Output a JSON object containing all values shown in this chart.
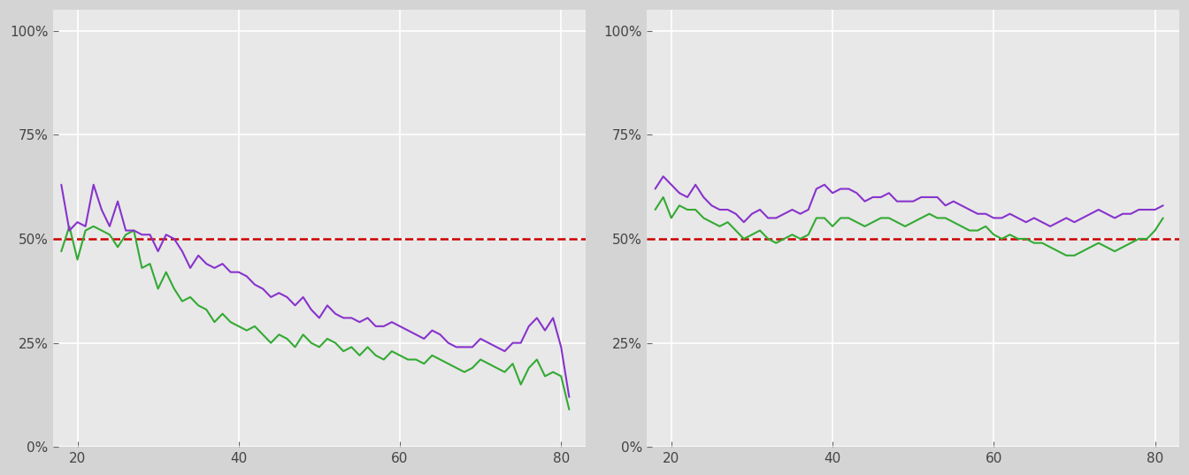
{
  "background_color": "#e8e8e8",
  "fig_background": "#d4d4d4",
  "ref_line": 0.5,
  "ref_line_color": "#cc0000",
  "xlim": [
    17,
    83
  ],
  "ylim": [
    0.0,
    1.05
  ],
  "yticks": [
    0.0,
    0.25,
    0.5,
    0.75,
    1.0
  ],
  "xticks": [
    20,
    40,
    60,
    80
  ],
  "male_color": "#33aa33",
  "female_color": "#8833cc",
  "line_width": 1.5,
  "left_female": [
    0.63,
    0.52,
    0.54,
    0.53,
    0.63,
    0.57,
    0.53,
    0.59,
    0.52,
    0.52,
    0.51,
    0.51,
    0.47,
    0.51,
    0.5,
    0.47,
    0.43,
    0.46,
    0.44,
    0.43,
    0.44,
    0.42,
    0.42,
    0.41,
    0.39,
    0.38,
    0.36,
    0.37,
    0.36,
    0.34,
    0.36,
    0.33,
    0.31,
    0.34,
    0.32,
    0.31,
    0.31,
    0.3,
    0.31,
    0.29,
    0.29,
    0.3,
    0.29,
    0.28,
    0.27,
    0.26,
    0.28,
    0.27,
    0.25,
    0.24,
    0.24,
    0.24,
    0.26,
    0.25,
    0.24,
    0.23,
    0.25,
    0.25,
    0.29,
    0.31,
    0.28,
    0.31,
    0.24,
    0.12
  ],
  "left_male": [
    0.47,
    0.53,
    0.45,
    0.52,
    0.53,
    0.52,
    0.51,
    0.48,
    0.51,
    0.52,
    0.43,
    0.44,
    0.38,
    0.42,
    0.38,
    0.35,
    0.36,
    0.34,
    0.33,
    0.3,
    0.32,
    0.3,
    0.29,
    0.28,
    0.29,
    0.27,
    0.25,
    0.27,
    0.26,
    0.24,
    0.27,
    0.25,
    0.24,
    0.26,
    0.25,
    0.23,
    0.24,
    0.22,
    0.24,
    0.22,
    0.21,
    0.23,
    0.22,
    0.21,
    0.21,
    0.2,
    0.22,
    0.21,
    0.2,
    0.19,
    0.18,
    0.19,
    0.21,
    0.2,
    0.19,
    0.18,
    0.2,
    0.15,
    0.19,
    0.21,
    0.17,
    0.18,
    0.17,
    0.09
  ],
  "right_female": [
    0.62,
    0.65,
    0.63,
    0.61,
    0.6,
    0.63,
    0.6,
    0.58,
    0.57,
    0.57,
    0.56,
    0.54,
    0.56,
    0.57,
    0.55,
    0.55,
    0.56,
    0.57,
    0.56,
    0.57,
    0.62,
    0.63,
    0.61,
    0.62,
    0.62,
    0.61,
    0.59,
    0.6,
    0.6,
    0.61,
    0.59,
    0.59,
    0.59,
    0.6,
    0.6,
    0.6,
    0.58,
    0.59,
    0.58,
    0.57,
    0.56,
    0.56,
    0.55,
    0.55,
    0.56,
    0.55,
    0.54,
    0.55,
    0.54,
    0.53,
    0.54,
    0.55,
    0.54,
    0.55,
    0.56,
    0.57,
    0.56,
    0.55,
    0.56,
    0.56,
    0.57,
    0.57,
    0.57,
    0.58
  ],
  "right_male": [
    0.57,
    0.6,
    0.55,
    0.58,
    0.57,
    0.57,
    0.55,
    0.54,
    0.53,
    0.54,
    0.52,
    0.5,
    0.51,
    0.52,
    0.5,
    0.49,
    0.5,
    0.51,
    0.5,
    0.51,
    0.55,
    0.55,
    0.53,
    0.55,
    0.55,
    0.54,
    0.53,
    0.54,
    0.55,
    0.55,
    0.54,
    0.53,
    0.54,
    0.55,
    0.56,
    0.55,
    0.55,
    0.54,
    0.53,
    0.52,
    0.52,
    0.53,
    0.51,
    0.5,
    0.51,
    0.5,
    0.5,
    0.49,
    0.49,
    0.48,
    0.47,
    0.46,
    0.46,
    0.47,
    0.48,
    0.49,
    0.48,
    0.47,
    0.48,
    0.49,
    0.5,
    0.5,
    0.52,
    0.55
  ]
}
